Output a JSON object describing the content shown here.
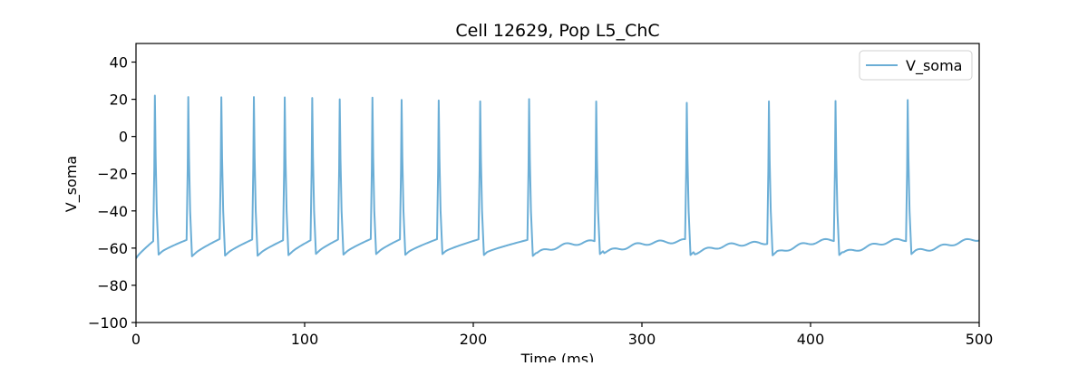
{
  "chart_data": {
    "type": "line",
    "title": "Cell 12629, Pop L5_ChC",
    "xlabel": "Time (ms)",
    "ylabel": "V_soma",
    "xlim": [
      0,
      500
    ],
    "ylim": [
      -100,
      50
    ],
    "x_ticks": [
      0,
      100,
      200,
      300,
      400,
      500
    ],
    "y_ticks": [
      -100,
      -80,
      -60,
      -40,
      -20,
      0,
      20,
      40
    ],
    "grid": false,
    "legend_position": "top-right",
    "series": [
      {
        "name": "V_soma",
        "color": "#6baed6",
        "spike_times": [
          11.2,
          31.0,
          50.6,
          69.9,
          88.2,
          104.5,
          120.8,
          140.2,
          157.5,
          179.5,
          204.1,
          233.1,
          272.9,
          326.6,
          375.3,
          414.8,
          457.6
        ],
        "spike_peaks": [
          22,
          21.2,
          21.1,
          21.2,
          21.0,
          20.7,
          20.0,
          20.9,
          19.7,
          19.4,
          18.9,
          20.1,
          18.8,
          18.1,
          18.9,
          19.1,
          19.6
        ],
        "trough_values": [
          -63.5,
          -64.4,
          -64.0,
          -64.1,
          -63.8,
          -63.1,
          -63.5,
          -63.2,
          -63.6,
          -63.2,
          -63.7,
          -64.2,
          -63.2,
          -63.7,
          -63.9,
          -63.7,
          -63.2
        ],
        "pre_spike_values": [
          -56.3,
          -55.6,
          -55.1,
          -55.4,
          -55.8,
          -55.8,
          -55.4,
          -55.1,
          -55.3,
          -55.2,
          -55.3,
          -55.6,
          -56.0,
          -55.4,
          -56.3,
          -55.3,
          -55.6
        ],
        "start_value": -65.5,
        "end_value": -55.6
      }
    ]
  }
}
